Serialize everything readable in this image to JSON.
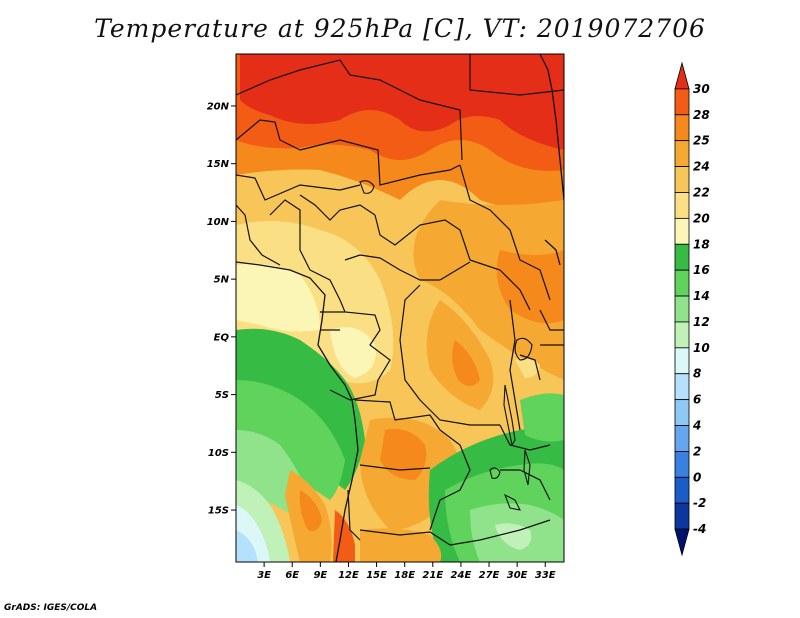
{
  "title": "Temperature at 925hPa [C], VT: 2019072706",
  "credit": "GrADS: IGES/COLA",
  "map": {
    "lon_range": [
      0,
      35
    ],
    "lat_range": [
      -19.5,
      24.5
    ],
    "lat_ticks": [
      {
        "value": 20,
        "label": "20N"
      },
      {
        "value": 15,
        "label": "15N"
      },
      {
        "value": 10,
        "label": "10N"
      },
      {
        "value": 5,
        "label": "5N"
      },
      {
        "value": 0,
        "label": "EQ"
      },
      {
        "value": -5,
        "label": "5S"
      },
      {
        "value": -10,
        "label": "10S"
      },
      {
        "value": -15,
        "label": "15S"
      }
    ],
    "lon_ticks": [
      {
        "value": 3,
        "label": "3E"
      },
      {
        "value": 6,
        "label": "6E"
      },
      {
        "value": 9,
        "label": "9E"
      },
      {
        "value": 12,
        "label": "12E"
      },
      {
        "value": 15,
        "label": "15E"
      },
      {
        "value": 18,
        "label": "18E"
      },
      {
        "value": 21,
        "label": "21E"
      },
      {
        "value": 24,
        "label": "24E"
      },
      {
        "value": 27,
        "label": "27E"
      },
      {
        "value": 30,
        "label": "30E"
      },
      {
        "value": 33,
        "label": "33E"
      }
    ]
  },
  "colorbar": {
    "labels": [
      "30",
      "28",
      "25",
      "24",
      "22",
      "20",
      "18",
      "16",
      "14",
      "12",
      "10",
      "8",
      "6",
      "4",
      "2",
      "0",
      "-2",
      "-4"
    ],
    "colors": [
      "#e52e18",
      "#f25c14",
      "#f6891c",
      "#f6a932",
      "#f8c658",
      "#fadf85",
      "#fcf6b6",
      "#36bb45",
      "#5fd35c",
      "#90e38a",
      "#c0f1b8",
      "#dcf7f7",
      "#b4e1fb",
      "#8ec8f5",
      "#64a7ee",
      "#3a80e0",
      "#1c5cc8",
      "#0c37a1",
      "#001270"
    ]
  },
  "colors": {
    "hot": "#e52e18",
    "warm": "#f6891c",
    "mild": "#fadf85",
    "green": "#5fd35c",
    "cold": "#8ec8f5"
  }
}
